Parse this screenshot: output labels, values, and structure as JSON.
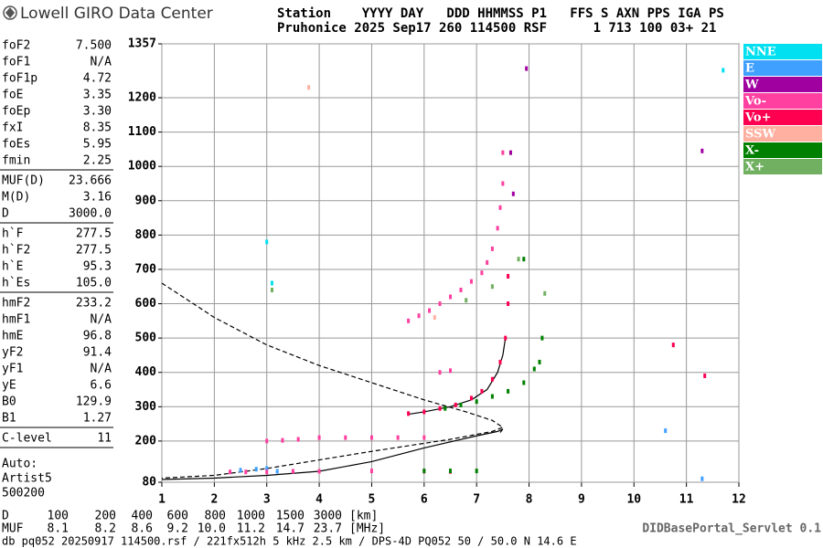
{
  "header": {
    "logo": "Lowell GIRO Data Center",
    "line1": "Station    YYYY DAY   DDD HHMMSS P1   FFS S AXN PPS IGA PS",
    "line2": "Pruhonice 2025 Sep17 260 114500 RSF      1 713 100 03+ 21"
  },
  "params": [
    [
      [
        "foF2",
        "7.500"
      ],
      [
        "foF1",
        "N/A"
      ],
      [
        "foF1p",
        "4.72"
      ],
      [
        "foE",
        "3.35"
      ],
      [
        "foEp",
        "3.30"
      ],
      [
        "fxI",
        "8.35"
      ],
      [
        "foEs",
        "5.95"
      ],
      [
        "fmin",
        "2.25"
      ]
    ],
    [
      [
        "MUF(D)",
        "23.666"
      ],
      [
        "M(D)",
        "3.16"
      ],
      [
        "D",
        "3000.0"
      ]
    ],
    [
      [
        "h`F",
        "277.5"
      ],
      [
        "h`F2",
        "277.5"
      ],
      [
        "h`E",
        "95.3"
      ],
      [
        "h`Es",
        "105.0"
      ]
    ],
    [
      [
        "hmF2",
        "233.2"
      ],
      [
        "hmF1",
        "N/A"
      ],
      [
        "hmE",
        "96.8"
      ],
      [
        "yF2",
        "91.4"
      ],
      [
        "yF1",
        "N/A"
      ],
      [
        "yE",
        "6.6"
      ],
      [
        "B0",
        "129.9"
      ],
      [
        "B1",
        "1.27"
      ]
    ],
    [
      [
        "C-level",
        "11"
      ]
    ]
  ],
  "auto": [
    "Auto:",
    "Artist5",
    "500200"
  ],
  "chart_data": {
    "type": "scatter",
    "xlim": [
      1,
      12
    ],
    "xticks": [
      1,
      2,
      3,
      4,
      5,
      6,
      7,
      8,
      9,
      10,
      11,
      12
    ],
    "ylim": [
      80,
      1357
    ],
    "yticks": [
      80,
      200,
      300,
      400,
      500,
      600,
      700,
      800,
      900,
      1000,
      1100,
      1200,
      1357
    ],
    "grid": true,
    "series": [
      {
        "name": "NNE",
        "color": "#00e0f0",
        "x": [
          3.0,
          3.1,
          11.7
        ],
        "y": [
          780,
          660,
          1280
        ]
      },
      {
        "name": "E",
        "color": "#40a0ff",
        "x": [
          2.5,
          2.8,
          3.0,
          3.2,
          11.3,
          10.6
        ],
        "y": [
          115,
          118,
          120,
          112,
          90,
          230
        ]
      },
      {
        "name": "W",
        "color": "#a000a0",
        "x": [
          7.65,
          7.7,
          7.95,
          11.3
        ],
        "y": [
          1040,
          920,
          1285,
          1045
        ]
      },
      {
        "name": "Vo-",
        "color": "#ff40a0",
        "x": [
          5.7,
          5.9,
          6.1,
          6.3,
          6.5,
          6.7,
          6.9,
          7.1,
          7.2,
          7.3,
          7.4,
          7.45,
          7.5,
          7.5,
          6.3,
          6.5,
          2.3,
          2.6,
          3.0,
          3.5,
          4.0,
          5.0,
          6.0,
          6.5,
          3.0,
          3.3,
          3.6,
          4.0,
          4.5,
          5.0,
          5.5,
          6.0
        ],
        "y": [
          550,
          565,
          580,
          600,
          620,
          640,
          665,
          690,
          720,
          760,
          820,
          880,
          950,
          1040,
          400,
          405,
          110,
          110,
          110,
          112,
          112,
          113,
          112,
          111,
          200,
          202,
          205,
          210,
          210,
          210,
          210,
          210
        ]
      },
      {
        "name": "Vo+",
        "color": "#ff0050",
        "x": [
          5.7,
          6.0,
          6.3,
          6.6,
          6.9,
          7.1,
          7.3,
          7.45,
          7.55,
          7.6,
          7.6,
          10.75,
          11.35
        ],
        "y": [
          280,
          285,
          295,
          305,
          325,
          345,
          380,
          430,
          500,
          600,
          680,
          480,
          390
        ]
      },
      {
        "name": "SSW",
        "color": "#ffb0a0",
        "x": [
          3.8,
          6.2
        ],
        "y": [
          1230,
          560
        ]
      },
      {
        "name": "X-",
        "color": "#008000",
        "x": [
          6.4,
          6.7,
          7.0,
          7.3,
          7.6,
          7.9,
          8.1,
          8.2,
          8.25,
          6.0,
          6.5,
          7.0,
          7.9
        ],
        "y": [
          295,
          305,
          315,
          330,
          345,
          370,
          410,
          430,
          500,
          113,
          113,
          113,
          730
        ]
      },
      {
        "name": "X+",
        "color": "#70b060",
        "x": [
          6.8,
          7.3,
          7.8,
          8.3,
          3.1
        ],
        "y": [
          610,
          650,
          730,
          630,
          640
        ]
      }
    ],
    "curves": [
      {
        "color": "#000000",
        "dash": false,
        "x": [
          1.0,
          2.0,
          3.0,
          4.0,
          5.0,
          6.0,
          7.0,
          7.4,
          7.5,
          7.45
        ],
        "y": [
          88,
          92,
          100,
          112,
          140,
          180,
          215,
          228,
          235,
          225
        ]
      },
      {
        "color": "#000000",
        "dash": false,
        "x": [
          5.7,
          6.0,
          6.5,
          6.9,
          7.2,
          7.4,
          7.5,
          7.55
        ],
        "y": [
          278,
          285,
          300,
          320,
          350,
          400,
          450,
          500
        ]
      },
      {
        "color": "#000000",
        "dash": true,
        "x": [
          1.0,
          2.0,
          3.0,
          4.0,
          5.0,
          6.0,
          6.8,
          7.3,
          7.5,
          7.3,
          6.5,
          5.0,
          4.0,
          3.0,
          2.0,
          1.0
        ],
        "y": [
          660,
          560,
          480,
          420,
          370,
          320,
          285,
          260,
          240,
          228,
          205,
          170,
          145,
          120,
          100,
          92
        ]
      }
    ]
  },
  "distance": {
    "label": "D",
    "values": [
      "100",
      "200",
      "400",
      "600",
      "800",
      "1000",
      "1500",
      "3000"
    ],
    "unit": "[km]"
  },
  "muf": {
    "label": "MUF",
    "values": [
      "8.1",
      "8.2",
      "8.6",
      "9.2",
      "10.0",
      "11.2",
      "14.7",
      "23.7"
    ],
    "unit": "[MHz]"
  },
  "footer": {
    "server": "DIDBasePortal_Servlet 0.1",
    "info": "db pq052 20250917 114500.rsf / 221fx512h 5 kHz 2.5 km / DPS-4D PQ052 50 / 50.0 N 14.6 E"
  }
}
